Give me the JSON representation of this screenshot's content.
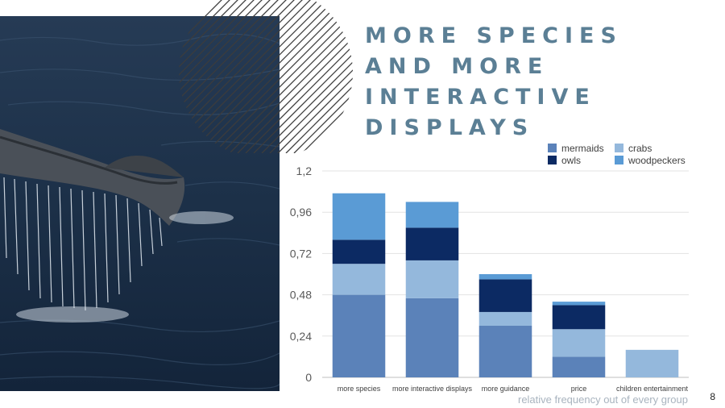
{
  "slide": {
    "title_lines": [
      "MORE SPECIES",
      "AND MORE",
      "INTERACTIVE",
      "DISPLAYS"
    ],
    "caption": "relative frequency out of every group",
    "page_number": "8"
  },
  "photo": {
    "subject": "whale-tail-in-ocean"
  },
  "colors": {
    "title": "#5b7f95",
    "mermaids": "#5b82b9",
    "crabs": "#94b8dc",
    "owls": "#0c2a63",
    "woodpeckers": "#5a9bd5"
  },
  "chart_data": {
    "type": "bar",
    "stacked": true,
    "categories": [
      "more species",
      "more interactive displays",
      "more guidance",
      "price",
      "children entertainment"
    ],
    "series": [
      {
        "name": "mermaids",
        "color": "#5b82b9",
        "values": [
          0.48,
          0.46,
          0.3,
          0.12,
          0.0
        ]
      },
      {
        "name": "crabs",
        "color": "#94b8dc",
        "values": [
          0.18,
          0.22,
          0.08,
          0.16,
          0.16
        ]
      },
      {
        "name": "owls",
        "color": "#0c2a63",
        "values": [
          0.14,
          0.19,
          0.19,
          0.14,
          0.0
        ]
      },
      {
        "name": "woodpeckers",
        "color": "#5a9bd5",
        "values": [
          0.27,
          0.15,
          0.03,
          0.02,
          0.0
        ]
      }
    ],
    "yticks": [
      "0",
      "0,24",
      "0,48",
      "0,72",
      "0,96",
      "1,2"
    ],
    "ylim": [
      0,
      1.2
    ],
    "grid": true,
    "legend_position": "top-right"
  }
}
